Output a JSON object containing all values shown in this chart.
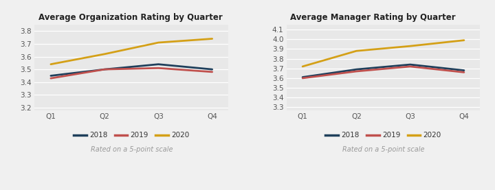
{
  "chart1": {
    "title": "Average Organization Rating by Quarter",
    "quarters": [
      "Q1",
      "Q2",
      "Q3",
      "Q4"
    ],
    "series": {
      "2018": [
        3.45,
        3.5,
        3.54,
        3.5
      ],
      "2019": [
        3.43,
        3.5,
        3.51,
        3.48
      ],
      "2020": [
        3.54,
        3.62,
        3.71,
        3.74
      ]
    },
    "ylim": [
      3.18,
      3.85
    ],
    "yticks": [
      3.2,
      3.3,
      3.4,
      3.5,
      3.6,
      3.7,
      3.8
    ],
    "subtitle": "Rated on a 5-point scale"
  },
  "chart2": {
    "title": "Average Manager Rating by Quarter",
    "quarters": [
      "Q1",
      "Q2",
      "Q3",
      "Q4"
    ],
    "series": {
      "2018": [
        3.61,
        3.69,
        3.74,
        3.68
      ],
      "2019": [
        3.6,
        3.67,
        3.72,
        3.66
      ],
      "2020": [
        3.72,
        3.88,
        3.93,
        3.99
      ]
    },
    "ylim": [
      3.27,
      4.15
    ],
    "yticks": [
      3.3,
      3.4,
      3.5,
      3.6,
      3.7,
      3.8,
      3.9,
      4.0,
      4.1
    ],
    "subtitle": "Rated on a 5-point scale"
  },
  "colors": {
    "2018": "#1f3f5b",
    "2019": "#c0504d",
    "2020": "#d4a017"
  },
  "bg_color": "#e8e8e8",
  "fig_bg_color": "#f0f0f0",
  "line_width": 2.0
}
